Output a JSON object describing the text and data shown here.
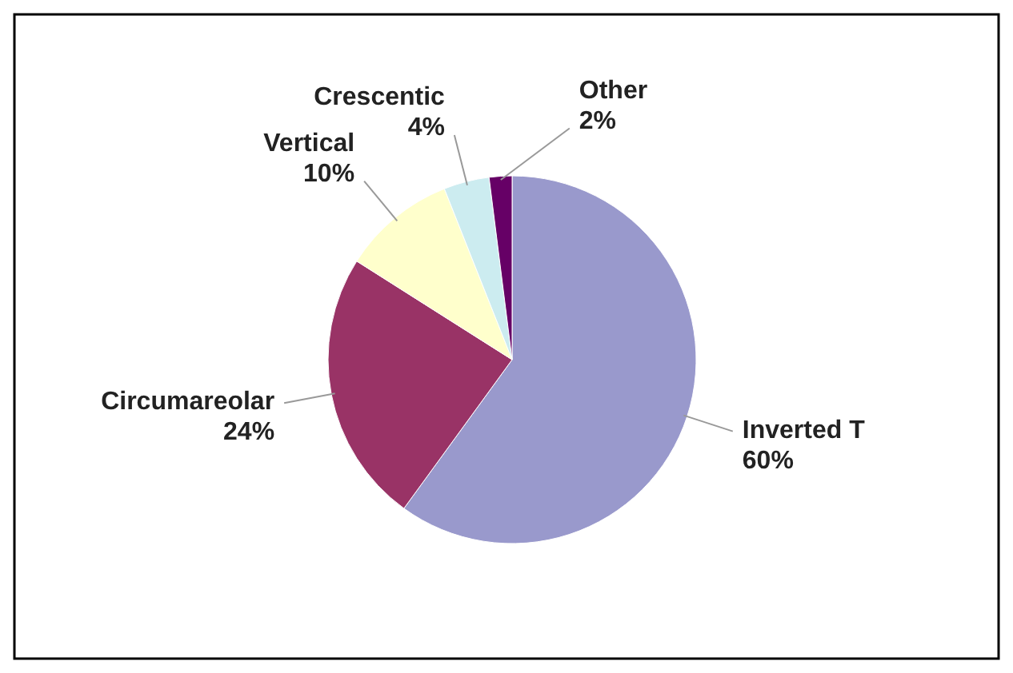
{
  "chart_data": {
    "type": "pie",
    "categories": [
      "Inverted T",
      "Circumareolar",
      "Vertical",
      "Crescentic",
      "Other"
    ],
    "values": [
      60,
      24,
      10,
      4,
      2
    ],
    "value_labels": [
      "60%",
      "24%",
      "10%",
      "4%",
      "2%"
    ],
    "colors": [
      "#9999cc",
      "#993366",
      "#ffffcc",
      "#ccecf0",
      "#660066"
    ],
    "legend": false
  }
}
